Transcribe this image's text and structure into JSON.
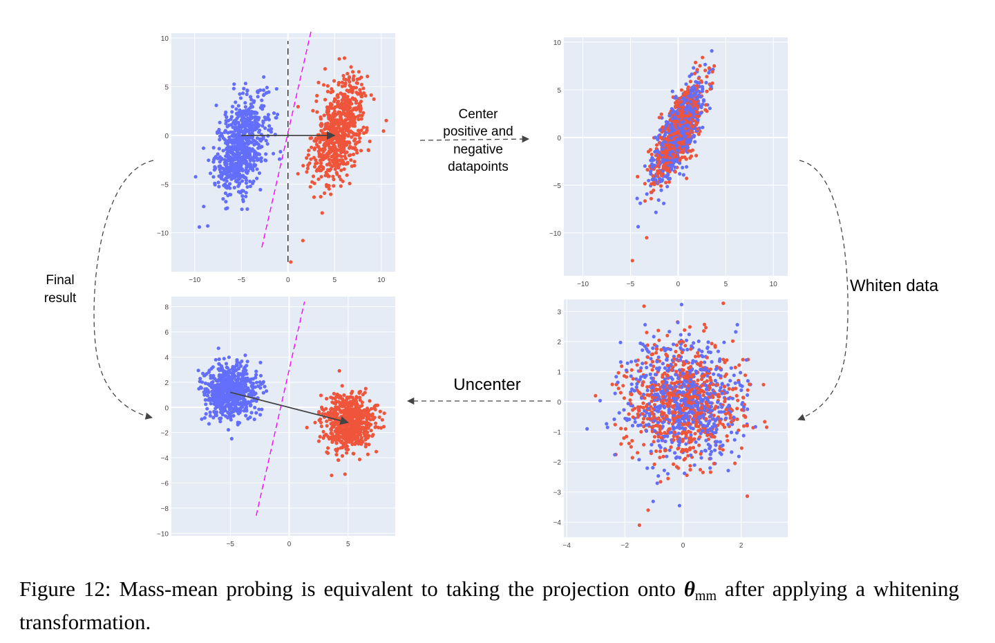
{
  "figure": {
    "step_labels": {
      "center": [
        "Center",
        "positive and",
        "negative",
        "datapoints"
      ],
      "whiten": "Whiten data",
      "uncenter": "Uncenter",
      "final": [
        "Final",
        "result"
      ]
    },
    "caption": {
      "prefix": "Figure 12: Mass-mean probing is equivalent to taking the projection onto",
      "theta": "θ",
      "theta_sub": "mm",
      "suffix": "after applying a whitening transformation."
    },
    "colors": {
      "negative_class": "#636efa",
      "positive_class": "#ef553b",
      "plot_bg": "#e5ecf6",
      "grid": "#ffffff",
      "probe_line": "#ff00ff",
      "arrow": "#444444",
      "tick_text": "#444444"
    }
  },
  "chart_data": [
    {
      "id": "original",
      "type": "scatter",
      "xlim": [
        -12.5,
        11.5
      ],
      "ylim": [
        -14,
        10.5
      ],
      "xticks": [
        -10,
        -5,
        0,
        5,
        10
      ],
      "yticks": [
        -10,
        -5,
        0,
        5,
        10
      ],
      "grid": true,
      "series": [
        {
          "class": "negative",
          "color": "#636efa",
          "n": 700,
          "mean": [
            -5,
            -1
          ],
          "sx": 1.4,
          "sy": 2.6,
          "rho": 0.45
        },
        {
          "class": "positive",
          "color": "#ef553b",
          "n": 700,
          "mean": [
            5.5,
            0.5
          ],
          "sx": 1.4,
          "sy": 2.6,
          "rho": 0.45
        }
      ],
      "outlier_points": [
        [
          -9.5,
          -9.4
        ],
        [
          -8.6,
          -9.3
        ],
        [
          0.3,
          -13.0
        ],
        [
          1.6,
          -10.8
        ]
      ],
      "mean_difference_arrow": {
        "from": [
          -5,
          0
        ],
        "to": [
          5,
          0
        ]
      },
      "probe_boundary_dashed": {
        "from": [
          -2.8,
          -11.5
        ],
        "to": [
          2.5,
          10.8
        ]
      },
      "vertical_dashed": {
        "from": [
          0,
          -13
        ],
        "to": [
          0,
          9.7
        ]
      }
    },
    {
      "id": "centered",
      "type": "scatter",
      "xlim": [
        -12,
        11.5
      ],
      "ylim": [
        -14.5,
        10.5
      ],
      "xticks": [
        -10,
        -5,
        0,
        5,
        10
      ],
      "yticks": [
        -10,
        -5,
        0,
        5,
        10
      ],
      "grid": true,
      "series": [
        {
          "class": "negative",
          "color": "#636efa",
          "n": 650,
          "mean": [
            0,
            0.5
          ],
          "sx": 1.3,
          "sy": 2.5,
          "rho": 0.75
        },
        {
          "class": "positive",
          "color": "#ef553b",
          "n": 650,
          "mean": [
            0,
            0.5
          ],
          "sx": 1.3,
          "sy": 2.5,
          "rho": 0.75
        }
      ],
      "outlier_points": [
        [
          -4.8,
          -12.9
        ],
        [
          -3.3,
          -10.5
        ]
      ]
    },
    {
      "id": "whitened",
      "type": "scatter",
      "xlim": [
        -4.1,
        3.6
      ],
      "ylim": [
        -4.5,
        3.4
      ],
      "xticks": [
        -4,
        -2,
        0,
        2
      ],
      "yticks": [
        -4,
        -3,
        -2,
        -1,
        0,
        1,
        2,
        3
      ],
      "grid": true,
      "series": [
        {
          "class": "negative",
          "color": "#636efa",
          "n": 650,
          "mean": [
            0,
            0
          ],
          "sx": 1.0,
          "sy": 1.0,
          "rho": 0.0
        },
        {
          "class": "positive",
          "color": "#ef553b",
          "n": 650,
          "mean": [
            0,
            0
          ],
          "sx": 1.0,
          "sy": 1.0,
          "rho": 0.0
        }
      ],
      "outlier_points": [
        [
          -1.5,
          -4.1
        ],
        [
          -1.2,
          -3.6
        ],
        [
          -3.3,
          -0.9
        ]
      ]
    },
    {
      "id": "final",
      "type": "scatter",
      "xlim": [
        -10,
        9
      ],
      "ylim": [
        -10.2,
        8.8
      ],
      "xticks": [
        -5,
        0,
        5
      ],
      "yticks": [
        -10,
        -8,
        -6,
        -4,
        -2,
        0,
        2,
        4,
        6,
        8
      ],
      "grid": true,
      "series": [
        {
          "class": "negative",
          "color": "#636efa",
          "n": 650,
          "mean": [
            -5,
            1.2
          ],
          "sx": 1.1,
          "sy": 1.1,
          "rho": 0.0
        },
        {
          "class": "positive",
          "color": "#ef553b",
          "n": 650,
          "mean": [
            5,
            -1.2
          ],
          "sx": 1.1,
          "sy": 1.1,
          "rho": 0.0
        }
      ],
      "outlier_points": [
        [
          3.6,
          -5.4
        ]
      ],
      "mean_difference_arrow": {
        "from": [
          -5,
          1.2
        ],
        "to": [
          5,
          -1.2
        ]
      },
      "probe_boundary_dashed": {
        "from": [
          -2.8,
          -8.6
        ],
        "to": [
          1.3,
          8.4
        ]
      }
    }
  ]
}
